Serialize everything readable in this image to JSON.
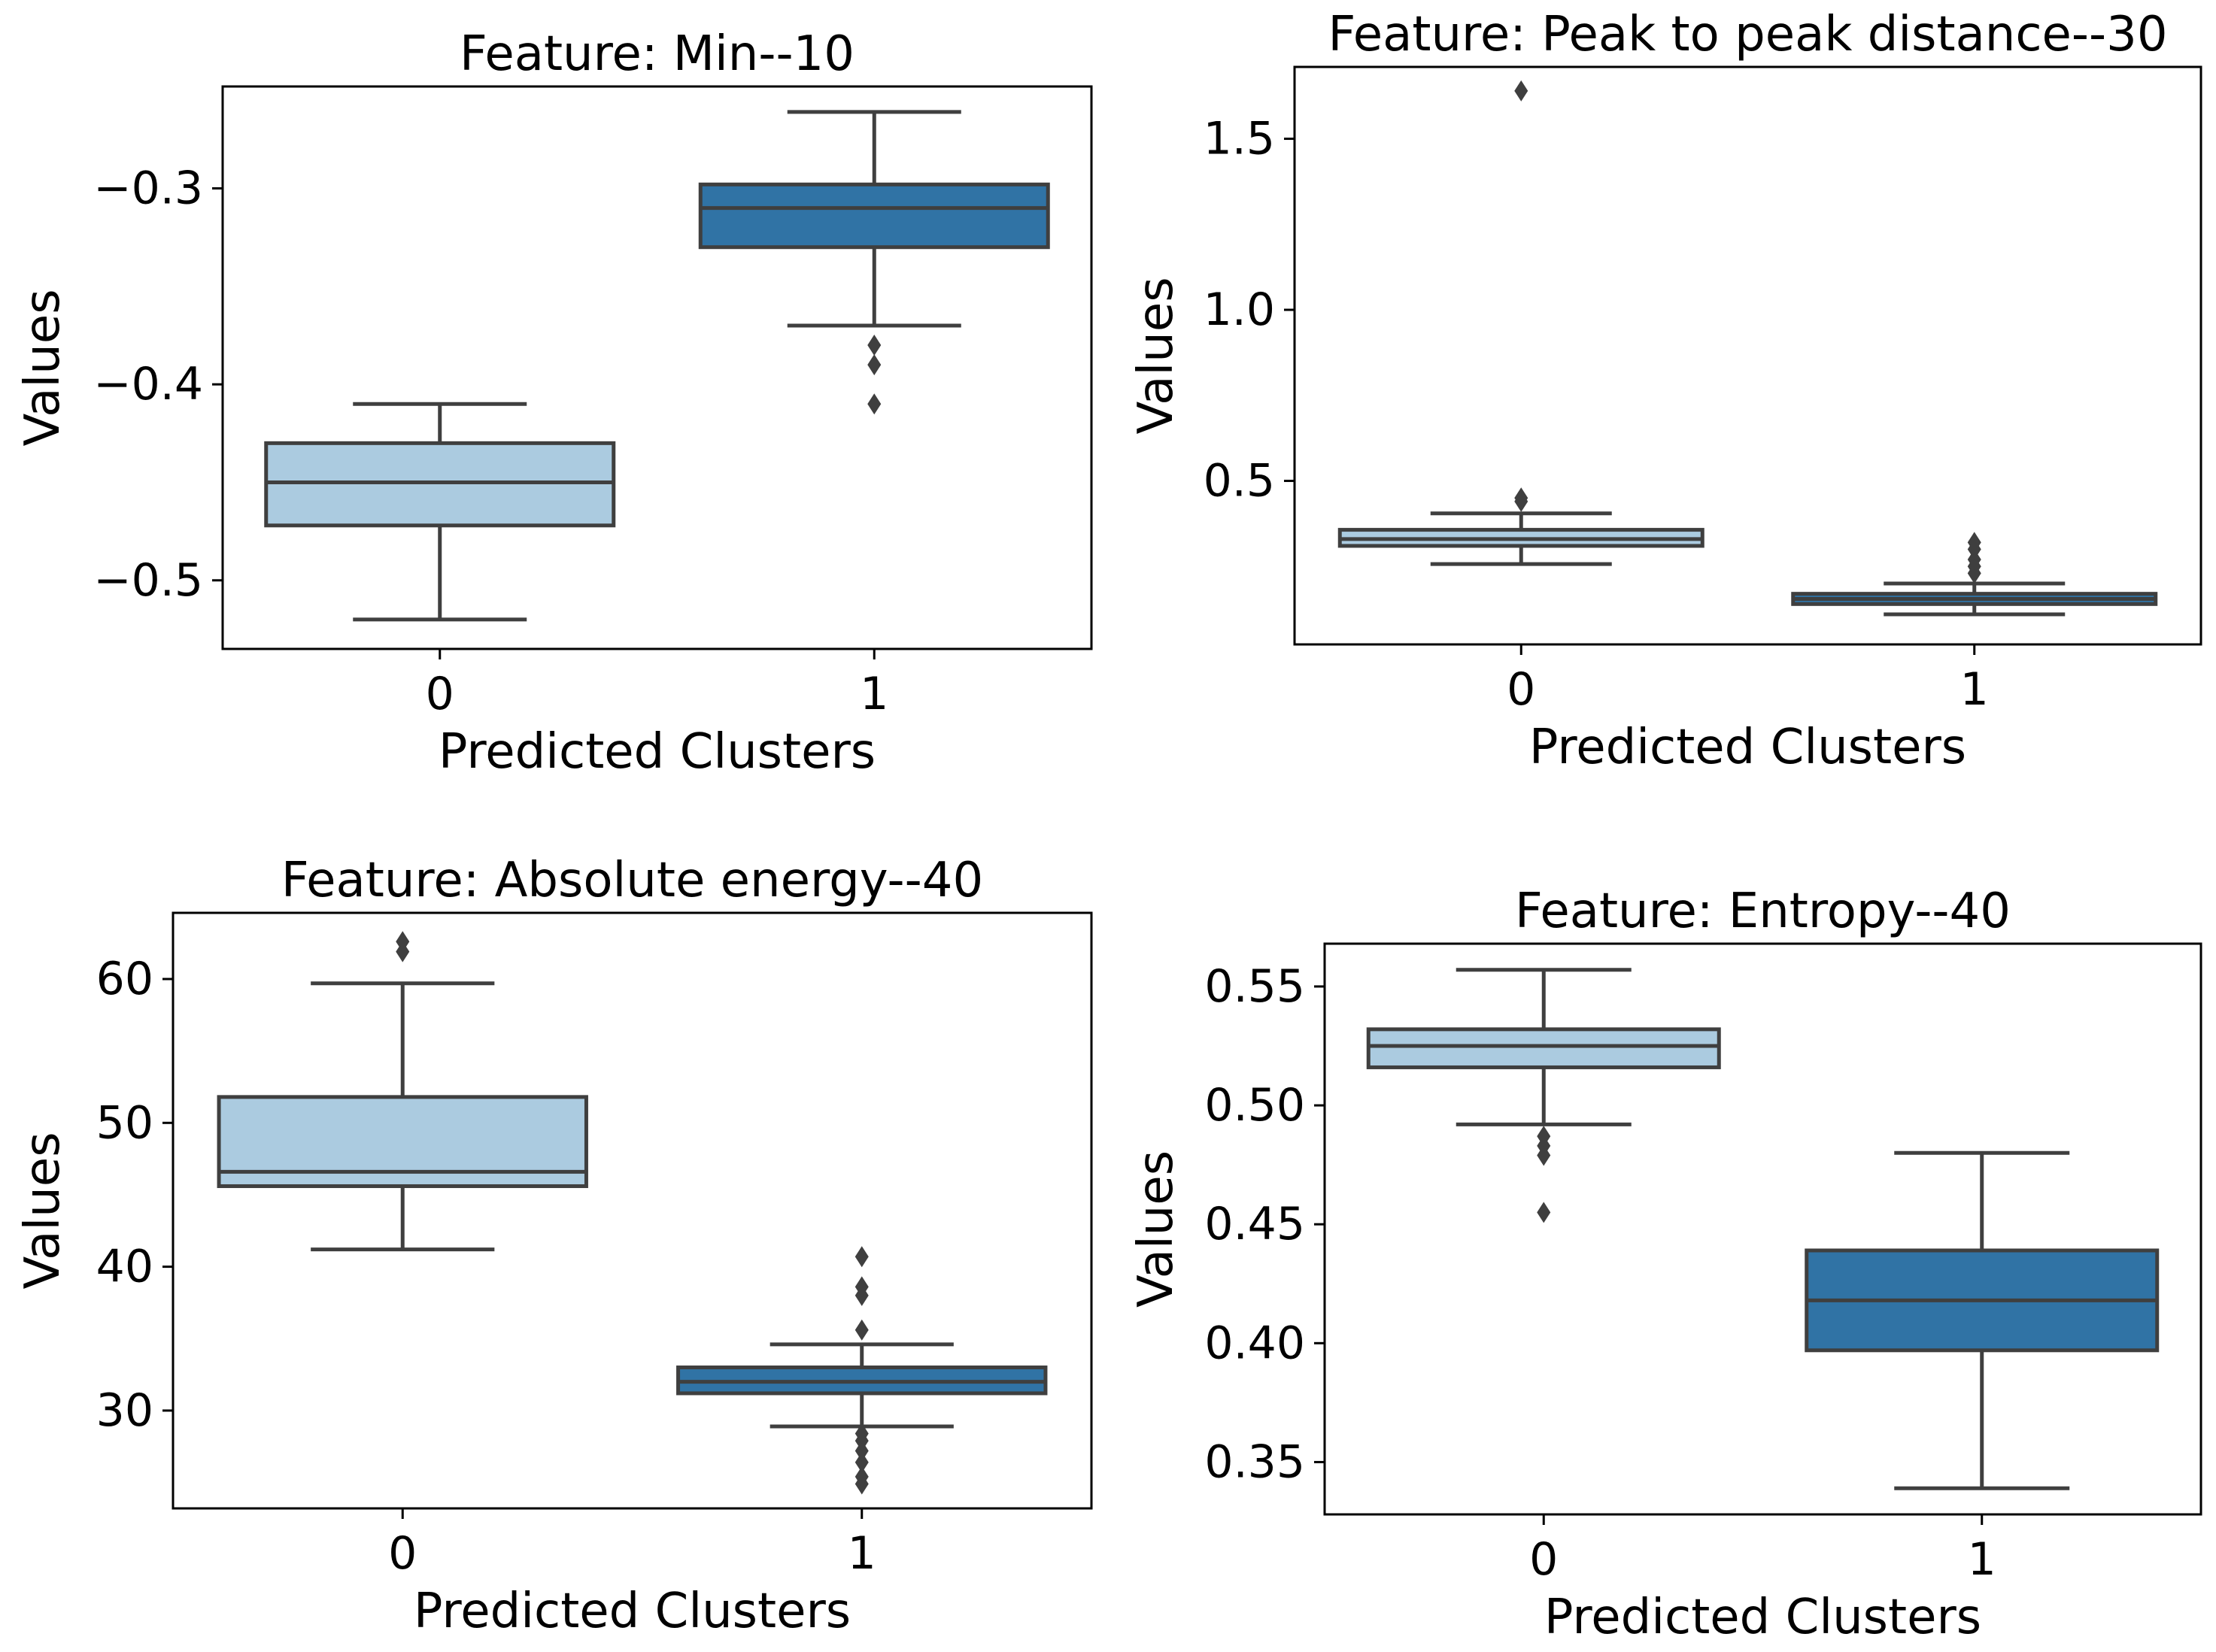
{
  "chart_data": [
    {
      "type": "boxplot",
      "title": "Feature: Min--10",
      "xlabel": "Predicted Clusters",
      "ylabel": "Values",
      "categories": [
        "0",
        "1"
      ],
      "ylim": [
        -0.535,
        -0.248
      ],
      "yticks": [
        -0.5,
        -0.4,
        -0.3
      ],
      "ytick_labels": [
        "−0.5",
        "−0.4",
        "−0.3"
      ],
      "colors": [
        "#abcbe0",
        "#3073a5"
      ],
      "boxes": [
        {
          "whisker_low": -0.52,
          "q1": -0.472,
          "median": -0.45,
          "q3": -0.43,
          "whisker_high": -0.41,
          "outliers": []
        },
        {
          "whisker_low": -0.37,
          "q1": -0.33,
          "median": -0.31,
          "q3": -0.298,
          "whisker_high": -0.261,
          "outliers": [
            -0.38,
            -0.39,
            -0.41
          ]
        }
      ]
    },
    {
      "type": "boxplot",
      "title": "Feature: Peak to peak distance--30",
      "xlabel": "Predicted Clusters",
      "ylabel": "Values",
      "categories": [
        "0",
        "1"
      ],
      "ylim": [
        0.022,
        1.71
      ],
      "yticks": [
        0.5,
        1.0,
        1.5
      ],
      "ytick_labels": [
        "0.5",
        "1.0",
        "1.5"
      ],
      "colors": [
        "#abcbe0",
        "#3073a5"
      ],
      "boxes": [
        {
          "whisker_low": 0.257,
          "q1": 0.31,
          "median": 0.33,
          "q3": 0.357,
          "whisker_high": 0.405,
          "outliers": [
            0.44,
            0.45,
            1.64
          ]
        },
        {
          "whisker_low": 0.11,
          "q1": 0.14,
          "median": 0.155,
          "q3": 0.17,
          "whisker_high": 0.2,
          "outliers": [
            0.23,
            0.25,
            0.27,
            0.3,
            0.32
          ]
        }
      ]
    },
    {
      "type": "boxplot",
      "title": "Feature: Absolute energy--40",
      "xlabel": "Predicted Clusters",
      "ylabel": "Values",
      "categories": [
        "0",
        "1"
      ],
      "ylim": [
        23.2,
        64.6
      ],
      "yticks": [
        30,
        40,
        50,
        60
      ],
      "ytick_labels": [
        "30",
        "40",
        "50",
        "60"
      ],
      "colors": [
        "#abcbe0",
        "#3073a5"
      ],
      "boxes": [
        {
          "whisker_low": 41.2,
          "q1": 45.6,
          "median": 46.6,
          "q3": 51.8,
          "whisker_high": 59.7,
          "outliers": [
            61.9,
            62.6
          ]
        },
        {
          "whisker_low": 28.9,
          "q1": 31.2,
          "median": 32.0,
          "q3": 33.0,
          "whisker_high": 34.6,
          "outliers": [
            24.9,
            25.4,
            26.4,
            27.2,
            27.9,
            28.4,
            35.6,
            38.0,
            38.6,
            40.7
          ]
        }
      ]
    },
    {
      "type": "boxplot",
      "title": "Feature: Entropy--40",
      "xlabel": "Predicted Clusters",
      "ylabel": "Values",
      "categories": [
        "0",
        "1"
      ],
      "ylim": [
        0.328,
        0.568
      ],
      "yticks": [
        0.35,
        0.4,
        0.45,
        0.5,
        0.55
      ],
      "ytick_labels": [
        "0.35",
        "0.40",
        "0.45",
        "0.50",
        "0.55"
      ],
      "colors": [
        "#abcbe0",
        "#3073a5"
      ],
      "boxes": [
        {
          "whisker_low": 0.492,
          "q1": 0.516,
          "median": 0.525,
          "q3": 0.532,
          "whisker_high": 0.557,
          "outliers": [
            0.455,
            0.479,
            0.483,
            0.487
          ]
        },
        {
          "whisker_low": 0.339,
          "q1": 0.397,
          "median": 0.418,
          "q3": 0.439,
          "whisker_high": 0.48,
          "outliers": []
        }
      ]
    }
  ]
}
